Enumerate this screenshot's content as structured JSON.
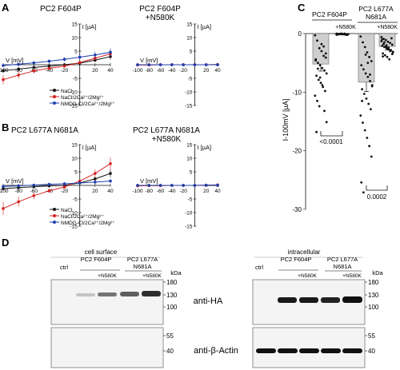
{
  "panels": {
    "A": {
      "letter": "A",
      "left": {
        "title": "PC2 F604P",
        "y_unit": "I [µA]",
        "x_unit": "V [mV]",
        "y_ticks": [
          "15",
          "10",
          "5",
          "-5",
          "-10",
          "-15"
        ],
        "x_ticks": [
          "-100",
          "-80",
          "-60",
          "-40",
          "-20",
          "20",
          "40"
        ],
        "legend": [
          "NaCl",
          "NaCl/2Ca²⁺/2Mg²⁺",
          "NMDG-Cl/2Ca²⁺/2Mg²⁺"
        ]
      },
      "right": {
        "title_line1": "PC2 F604P",
        "title_line2": "+N580K",
        "y_unit": "I [µA]",
        "x_unit": "V [mV]",
        "y_ticks": [
          "15",
          "10",
          "5",
          "-5",
          "-10",
          "-15"
        ],
        "x_ticks": [
          "-100",
          "-80",
          "-60",
          "-40",
          "-20",
          "20",
          "40"
        ]
      }
    },
    "B": {
      "letter": "B",
      "left": {
        "title": "PC2 L677A N681A",
        "y_unit": "I [µA]",
        "x_unit": "V [mV]",
        "y_ticks": [
          "15",
          "10",
          "5",
          "-5",
          "-10",
          "-15"
        ],
        "x_ticks": [
          "-100",
          "-80",
          "-60",
          "-40",
          "-20",
          "20",
          "40"
        ],
        "legend": [
          "NaCl",
          "NaCl/2Ca²⁺/2Mg²⁺",
          "NMDG-Cl/2Ca²⁺/2Mg²⁺"
        ]
      },
      "right": {
        "title_line1": "PC2 L677A N681A",
        "title_line2": "+N580K",
        "y_unit": "I [µA]",
        "x_unit": "V [mV]",
        "y_ticks": [
          "15",
          "10",
          "5",
          "-5",
          "-10",
          "-15"
        ],
        "x_ticks": [
          "-100",
          "-80",
          "-60",
          "-40",
          "-20",
          "20",
          "40"
        ]
      }
    },
    "C": {
      "letter": "C",
      "group1": "PC2 F604P",
      "group2_line1": "PC2 L677A",
      "group2_line2": "N681A",
      "mutant_label": "+N580K",
      "y_label": "I-100mV [µA]",
      "y_ticks": [
        "0",
        "-10",
        "-20",
        "-30"
      ],
      "p_value_1": "<0.0001",
      "p_value_2": "0.0002"
    },
    "D": {
      "letter": "D",
      "left_header": "cell surface",
      "right_header": "intracellular",
      "ctrl": "ctrl",
      "lane_group1": "PC2 F604P",
      "lane_group2_line1": "PC2 L677A",
      "lane_group2_line2": "N681A",
      "mutant_label": "+N580K",
      "kda": "kDa",
      "upper_markers": [
        "180",
        "130",
        "100"
      ],
      "lower_markers": [
        "55",
        "40"
      ],
      "antibody_top": "anti-HA",
      "antibody_bottom": "anti-β-Actin"
    }
  },
  "chart_data": [
    {
      "type": "line",
      "panel": "A-left",
      "title": "PC2 F604P",
      "xlabel": "V [mV]",
      "ylabel": "I [µA]",
      "x": [
        -100,
        -80,
        -60,
        -40,
        -20,
        0,
        20,
        40
      ],
      "xlim": [
        -100,
        40
      ],
      "ylim": [
        -15,
        15
      ],
      "series": [
        {
          "name": "NaCl",
          "color": "#111111",
          "values": [
            -2.2,
            -1.6,
            -1.0,
            -0.5,
            0.0,
            0.6,
            1.7,
            3.0
          ]
        },
        {
          "name": "NaCl/2Ca²⁺/2Mg²⁺",
          "color": "#d42020",
          "values": [
            -5.5,
            -3.8,
            -2.3,
            -1.3,
            -0.5,
            0.8,
            2.4,
            4.0
          ]
        },
        {
          "name": "NMDG-Cl/2Ca²⁺/2Mg²⁺",
          "color": "#1f3fae",
          "values": [
            -0.3,
            0.2,
            0.7,
            1.3,
            2.0,
            2.8,
            3.6,
            4.6
          ]
        }
      ]
    },
    {
      "type": "line",
      "panel": "A-right",
      "xlabel": "V [mV]",
      "ylabel": "I [µA]",
      "x": [
        -100,
        -80,
        -60,
        -40,
        -20,
        0,
        20,
        40
      ],
      "xlim": [
        -100,
        40
      ],
      "ylim": [
        -15,
        15
      ],
      "series": [
        {
          "name": "NaCl",
          "color": "#111111",
          "values": [
            0,
            0,
            0,
            0,
            0,
            0,
            0,
            0
          ]
        },
        {
          "name": "NaCl/2Ca²⁺/2Mg²⁺",
          "color": "#d42020",
          "values": [
            -0.1,
            -0.1,
            0,
            0,
            0,
            0,
            0,
            0.1
          ]
        },
        {
          "name": "NMDG-Cl/2Ca²⁺/2Mg²⁺",
          "color": "#1f3fae",
          "values": [
            0,
            0,
            0,
            0,
            0,
            0,
            0,
            0
          ]
        }
      ]
    },
    {
      "type": "line",
      "panel": "B-left",
      "title": "PC2 L677A N681A",
      "xlabel": "V [mV]",
      "ylabel": "I [µA]",
      "x": [
        -100,
        -80,
        -60,
        -40,
        -20,
        0,
        20,
        40
      ],
      "xlim": [
        -100,
        40
      ],
      "ylim": [
        -15,
        15
      ],
      "series": [
        {
          "name": "NaCl",
          "color": "#111111",
          "values": [
            -1.2,
            -0.8,
            -0.5,
            -0.2,
            0.0,
            0.9,
            2.4,
            4.4
          ]
        },
        {
          "name": "NaCl/2Ca²⁺/2Mg²⁺",
          "color": "#d42020",
          "values": [
            -8.5,
            -6.0,
            -3.8,
            -2.0,
            -0.6,
            1.6,
            4.4,
            8.0
          ]
        },
        {
          "name": "NMDG-Cl/2Ca²⁺/2Mg²⁺",
          "color": "#1f3fae",
          "values": [
            -0.4,
            -0.2,
            0.1,
            0.4,
            0.6,
            0.9,
            1.2,
            1.6
          ]
        }
      ]
    },
    {
      "type": "line",
      "panel": "B-right",
      "xlabel": "V [mV]",
      "ylabel": "I [µA]",
      "x": [
        -100,
        -80,
        -60,
        -40,
        -20,
        0,
        20,
        40
      ],
      "xlim": [
        -100,
        40
      ],
      "ylim": [
        -15,
        15
      ],
      "series": [
        {
          "name": "NaCl",
          "color": "#111111",
          "values": [
            0,
            0,
            0,
            0,
            0,
            0,
            0,
            0
          ]
        },
        {
          "name": "NaCl/2Ca²⁺/2Mg²⁺",
          "color": "#d42020",
          "values": [
            -0.2,
            -0.1,
            -0.1,
            0,
            0,
            0,
            0.1,
            0.2
          ]
        },
        {
          "name": "NMDG-Cl/2Ca²⁺/2Mg²⁺",
          "color": "#1f3fae",
          "values": [
            0,
            0,
            0,
            0,
            0,
            0,
            0.1,
            0.1
          ]
        }
      ]
    },
    {
      "type": "bar",
      "panel": "C",
      "ylabel": "I-100mV [µA]",
      "ylim": [
        -30,
        0
      ],
      "categories": [
        "PC2 F604P",
        "PC2 F604P +N580K",
        "PC2 L677A N681A",
        "PC2 L677A N681A +N580K"
      ],
      "values": [
        -5.2,
        -0.1,
        -8.3,
        -2.2
      ],
      "points": [
        [
          -0.3,
          -1.2,
          -2.5,
          -3.0,
          -3.8,
          -4.1,
          -4.6,
          -5.0,
          -5.4,
          -5.9,
          -6.3,
          -6.8,
          -7.2,
          -7.9,
          -8.4,
          -9.1,
          -9.8,
          -10.6,
          -11.5,
          -12.4,
          -1.8,
          -2.2,
          -3.4,
          -4.4,
          -6.0,
          -7.5,
          -8.8,
          -13.2,
          -15.1,
          -16.8
        ],
        [
          0.0,
          -0.05,
          -0.1,
          -0.1,
          -0.15,
          -0.2,
          -0.1,
          -0.05,
          0.0,
          -0.1,
          -0.2,
          -0.1,
          -0.15,
          -0.05,
          -0.1,
          0.0,
          -0.1,
          -0.2
        ],
        [
          -0.5,
          -1.5,
          -2.3,
          -3.2,
          -4.0,
          -4.7,
          -5.4,
          -6.1,
          -6.8,
          -7.4,
          -8.1,
          -8.8,
          -9.5,
          -10.3,
          -11.1,
          -12.0,
          -12.9,
          -14.0,
          -15.2,
          -16.5,
          -17.8,
          -19.2,
          -21.0,
          -25.4,
          -27.1,
          -3.6,
          -5.0,
          -7.0,
          -9.0,
          -11.5
        ],
        [
          -0.6,
          -0.9,
          -1.1,
          -1.4,
          -1.6,
          -1.9,
          -2.1,
          -2.3,
          -2.5,
          -2.7,
          -2.9,
          -3.1,
          -3.4,
          -3.7,
          -4.0,
          -4.4,
          -0.8,
          -1.3,
          -1.8,
          -2.2,
          -2.6,
          -3.0,
          -3.5,
          -1.0,
          -1.5,
          -2.0,
          -2.4,
          -2.8,
          -3.2,
          -3.9
        ]
      ],
      "errors": [
        1.2,
        0.05,
        1.6,
        0.6
      ]
    }
  ]
}
